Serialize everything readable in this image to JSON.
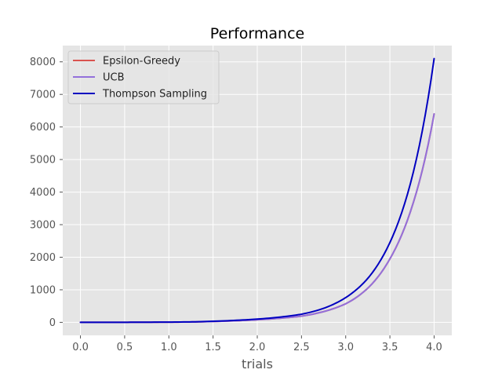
{
  "chart_data": {
    "type": "line",
    "title": "Performance",
    "xlabel": "trials",
    "ylabel": "",
    "xlim": [
      -0.2,
      4.2
    ],
    "ylim": [
      -400,
      8500
    ],
    "xticks": [
      "0.0",
      "0.5",
      "1.0",
      "1.5",
      "2.0",
      "2.5",
      "3.0",
      "3.5",
      "4.0"
    ],
    "yticks": [
      "0",
      "1000",
      "2000",
      "3000",
      "4000",
      "5000",
      "6000",
      "7000",
      "8000"
    ],
    "grid": true,
    "legend_position": "top-left",
    "series": [
      {
        "name": "Epsilon-Greedy",
        "color": "#d9534f",
        "x": [
          0.0,
          0.25,
          0.5,
          0.75,
          1.0,
          1.25,
          1.5,
          1.75,
          2.0,
          2.25,
          2.5,
          2.75,
          3.0,
          3.25,
          3.5,
          3.75,
          4.0
        ],
        "y": [
          0,
          0.5,
          2,
          5,
          6,
          12,
          26,
          48,
          80,
          125,
          190,
          330,
          570,
          1050,
          1950,
          3550,
          6400
        ]
      },
      {
        "name": "UCB",
        "color": "#9370db",
        "x": [
          0.0,
          0.25,
          0.5,
          0.75,
          1.0,
          1.25,
          1.5,
          1.75,
          2.0,
          2.25,
          2.5,
          2.75,
          3.0,
          3.25,
          3.5,
          3.75,
          4.0
        ],
        "y": [
          0,
          0.5,
          2,
          5,
          6,
          12,
          26,
          48,
          80,
          125,
          190,
          330,
          570,
          1050,
          1950,
          3550,
          6400
        ]
      },
      {
        "name": "Thompson Sampling",
        "color": "#0000c0",
        "x": [
          0.0,
          0.25,
          0.5,
          0.75,
          1.0,
          1.25,
          1.5,
          1.75,
          2.0,
          2.25,
          2.5,
          2.75,
          3.0,
          3.25,
          3.5,
          3.75,
          4.0
        ],
        "y": [
          0,
          0.5,
          2,
          5,
          7,
          15,
          33,
          62,
          100,
          160,
          250,
          430,
          760,
          1350,
          2450,
          4450,
          8100
        ]
      }
    ]
  }
}
